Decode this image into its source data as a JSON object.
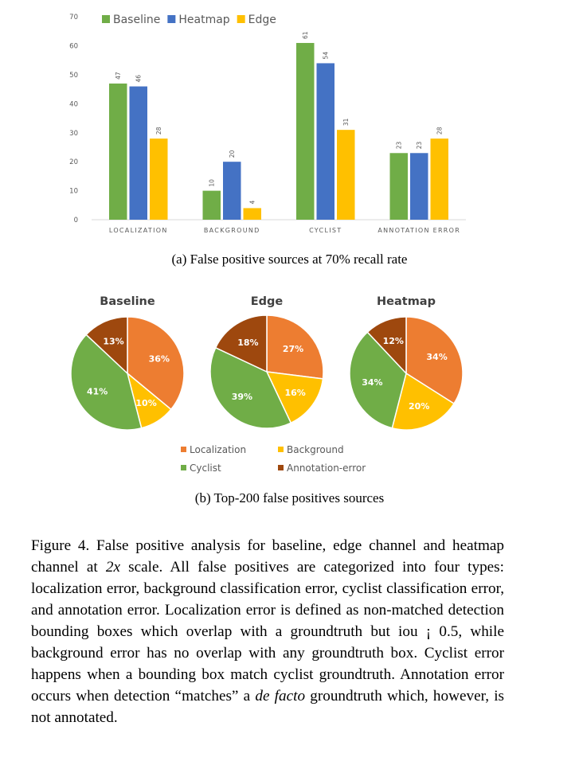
{
  "chart_data": [
    {
      "type": "bar",
      "title": "",
      "categories": [
        "LOCALIZATION",
        "BACKGROUND",
        "CYCLIST",
        "ANNOTATION ERROR"
      ],
      "series": [
        {
          "name": "Baseline",
          "color": "#70ad47",
          "values": [
            47,
            10,
            61,
            23
          ]
        },
        {
          "name": "Heatmap",
          "color": "#4472c4",
          "values": [
            46,
            20,
            54,
            23
          ]
        },
        {
          "name": "Edge",
          "color": "#ffc000",
          "values": [
            28,
            4,
            31,
            28
          ]
        }
      ],
      "ylim": [
        0,
        70
      ],
      "yticks": [
        0,
        10,
        20,
        30,
        40,
        50,
        60,
        70
      ],
      "xlabel": "",
      "ylabel": "",
      "legend": "top-left",
      "grid": false
    },
    {
      "type": "pie",
      "title": "Baseline",
      "slices": [
        {
          "label": "Localization",
          "value": 36,
          "color": "#ed7d31"
        },
        {
          "label": "Background",
          "value": 10,
          "color": "#ffc000"
        },
        {
          "label": "Cyclist",
          "value": 41,
          "color": "#70ad47"
        },
        {
          "label": "Annotation-error",
          "value": 13,
          "color": "#9e480e"
        }
      ]
    },
    {
      "type": "pie",
      "title": "Edge",
      "slices": [
        {
          "label": "Localization",
          "value": 27,
          "color": "#ed7d31"
        },
        {
          "label": "Background",
          "value": 16,
          "color": "#ffc000"
        },
        {
          "label": "Cyclist",
          "value": 39,
          "color": "#70ad47"
        },
        {
          "label": "Annotation-error",
          "value": 18,
          "color": "#9e480e"
        }
      ]
    },
    {
      "type": "pie",
      "title": "Heatmap",
      "slices": [
        {
          "label": "Localization",
          "value": 34,
          "color": "#ed7d31"
        },
        {
          "label": "Background",
          "value": 20,
          "color": "#ffc000"
        },
        {
          "label": "Cyclist",
          "value": 34,
          "color": "#70ad47"
        },
        {
          "label": "Annotation-error",
          "value": 12,
          "color": "#9e480e"
        }
      ]
    }
  ],
  "pie_legend": [
    {
      "label": "Localization",
      "color": "#ed7d31"
    },
    {
      "label": "Background",
      "color": "#ffc000"
    },
    {
      "label": "Cyclist",
      "color": "#70ad47"
    },
    {
      "label": "Annotation-error",
      "color": "#9e480e"
    }
  ],
  "subcaption_a": "(a) False positive sources at 70% recall rate",
  "subcaption_b": "(b) Top-200 false positives sources",
  "caption": {
    "p1": "Figure 4. False positive analysis for baseline, edge channel and heatmap channel at ",
    "scale_em": "2x",
    "p2": " scale.  All false positives are categorized into four types: localization error, background classification error, cyclist classification error, and annotation error. Localization error is defined as non-matched detection bounding boxes which overlap with a groundtruth but iou ¡ 0.5, while background error has no overlap with any groundtruth box.  Cyclist error happens when a bounding box match cyclist groundtruth. Annotation error occurs when detection “matches” a ",
    "defacto_em": "de facto",
    "p3": " groundtruth which, however, is not annotated."
  }
}
